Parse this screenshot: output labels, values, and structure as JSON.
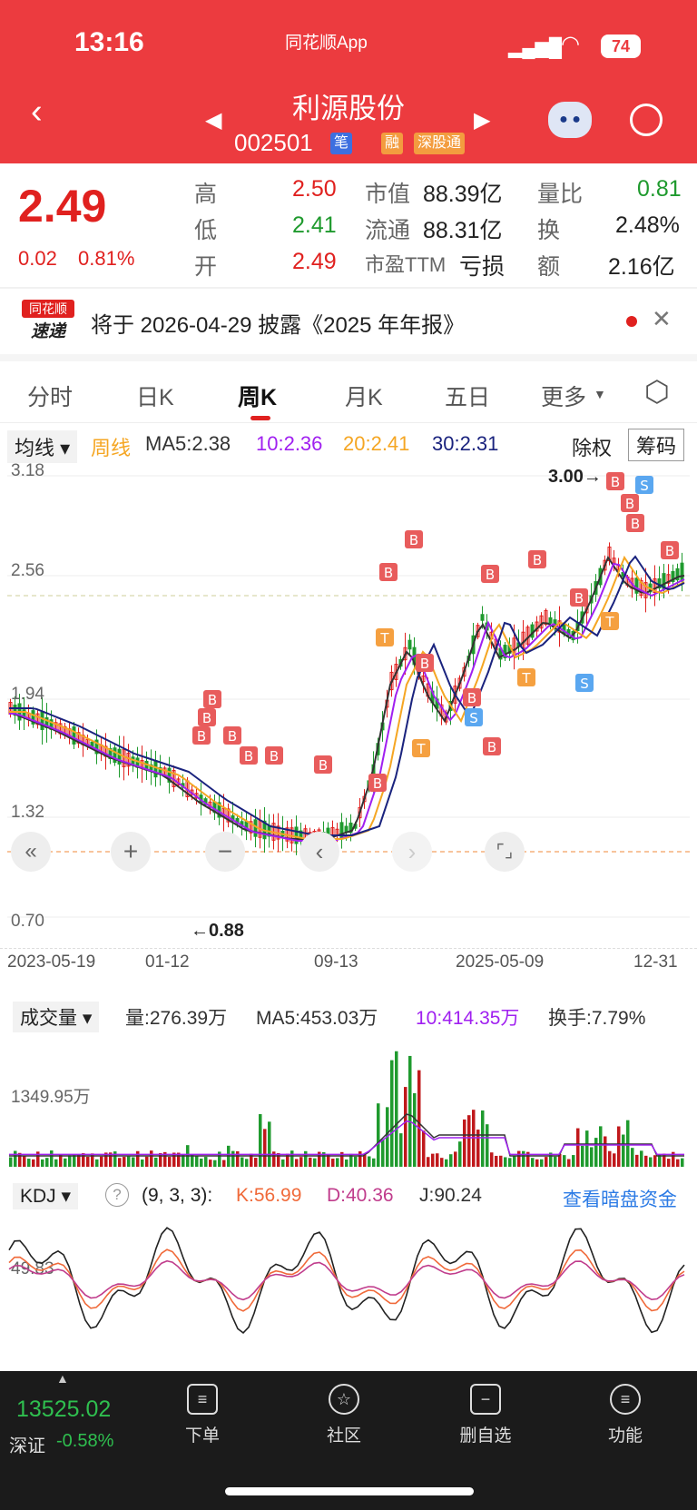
{
  "status_bar": {
    "time": "13:16",
    "app": "同花顺App",
    "battery": "74"
  },
  "header": {
    "name": "利源股份",
    "code": "002501",
    "tags": [
      "笔",
      "融",
      "深股通"
    ]
  },
  "quote": {
    "price": "2.49",
    "change": "0.02",
    "change_pct": "0.81%",
    "high_label": "高",
    "high": "2.50",
    "low_label": "低",
    "low": "2.41",
    "open_label": "开",
    "open": "2.49",
    "mcap_label": "市值",
    "mcap": "88.39亿",
    "float_label": "流通",
    "float_mcap": "88.31亿",
    "pe_label": "市盈TTM",
    "pe": "亏损",
    "vr_label": "量比",
    "vr": "0.81",
    "turn_label": "换",
    "turn": "2.48%",
    "amt_label": "额",
    "amt": "2.16亿"
  },
  "notice": {
    "logo_line1": "同花顺",
    "logo_line2": "速递",
    "text": "将于 2026-04-29 披露《2025 年年报》"
  },
  "tabs": [
    "分时",
    "日K",
    "周K",
    "月K",
    "五日",
    "更多"
  ],
  "active_tab": 2,
  "ma_legend": {
    "selector": "均线",
    "type": "周线",
    "ma5": "MA5:2.38",
    "ma10": "10:2.36",
    "ma20": "20:2.41",
    "ma30": "30:2.31",
    "exright": "除权",
    "chips": "筹码"
  },
  "price_axis": [
    "3.18",
    "2.56",
    "1.94",
    "1.32",
    "0.70"
  ],
  "annot_high": "3.00→",
  "annot_low": "←0.88",
  "dates": [
    "2023-05-19",
    "01-12",
    "09-13",
    "2025-05-09",
    "12-31"
  ],
  "volume": {
    "selector": "成交量",
    "vol": "量:276.39万",
    "ma5": "MA5:453.03万",
    "ma10": "10:414.35万",
    "turnover": "换手:7.79%",
    "axis_label": "1349.95万"
  },
  "kdj": {
    "selector": "KDJ",
    "params": "(9, 3, 3):",
    "k": "K:56.99",
    "d": "D:40.36",
    "j": "J:90.24",
    "link": "查看暗盘资金",
    "axis_label": "49.83"
  },
  "bottom": {
    "index_value": "13525.02",
    "index_name": "深证",
    "index_change": "-0.58%",
    "nav": [
      "下单",
      "社区",
      "删自选",
      "功能"
    ]
  },
  "colors": {
    "up": "#e0211f",
    "down": "#1f9a2e",
    "ma5": "#333333",
    "ma10": "#a020f0",
    "ma20": "#f5a623",
    "ma30": "#1a237e"
  }
}
